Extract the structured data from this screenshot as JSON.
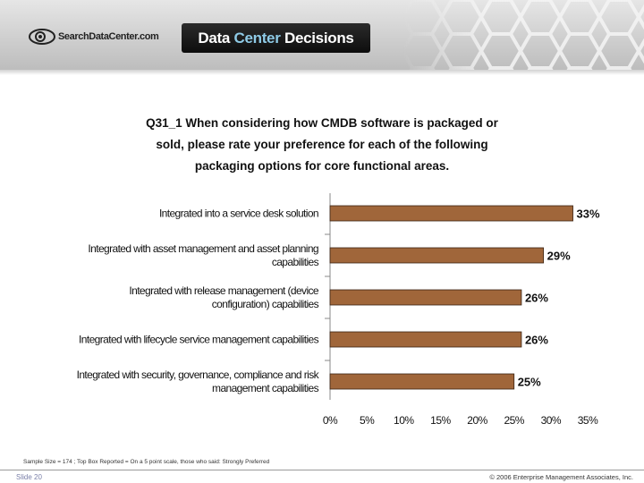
{
  "header": {
    "logo_text": "SearchDataCenter.com",
    "banner_part1": "Data ",
    "banner_accent": "Center",
    "banner_part2": " Decisions"
  },
  "question": {
    "line1": "Q31_1 When considering how CMDB software is packaged or",
    "line2": "sold, please rate your preference for each of the following",
    "line3": "packaging options for core functional areas."
  },
  "chart_data": {
    "type": "bar",
    "orientation": "horizontal",
    "categories": [
      [
        "Integrated into a service desk solution"
      ],
      [
        "Integrated with asset management and asset planning",
        "capabilities"
      ],
      [
        "Integrated with release management (device",
        "configuration) capabilities"
      ],
      [
        "Integrated with lifecycle service management capabilities"
      ],
      [
        "Integrated with security, governance, compliance and risk",
        "management capabilities"
      ]
    ],
    "values": [
      33,
      29,
      26,
      26,
      25
    ],
    "data_labels": [
      "33%",
      "29%",
      "26%",
      "26%",
      "25%"
    ],
    "xlim": [
      0,
      35
    ],
    "ticks": [
      "0%",
      "5%",
      "10%",
      "15%",
      "20%",
      "25%",
      "30%",
      "35%"
    ],
    "bar_color": "#a0663a",
    "grid": false
  },
  "footer": {
    "note": "Sample Size = 174 ; Top Box Reported = On a 5 point scale, those who said: Strongly Preferred",
    "slide": "Slide  20",
    "copyright": "© 2006 Enterprise Management Associates, Inc."
  },
  "colors": {
    "header_bg": "#cfcfcf",
    "banner_bg": "#1a1a1a",
    "banner_accent": "#8ecae6",
    "bar": "#a0663a"
  },
  "icons": {
    "logo": "eye-logo-icon",
    "decoration": "honeycomb-pattern"
  }
}
